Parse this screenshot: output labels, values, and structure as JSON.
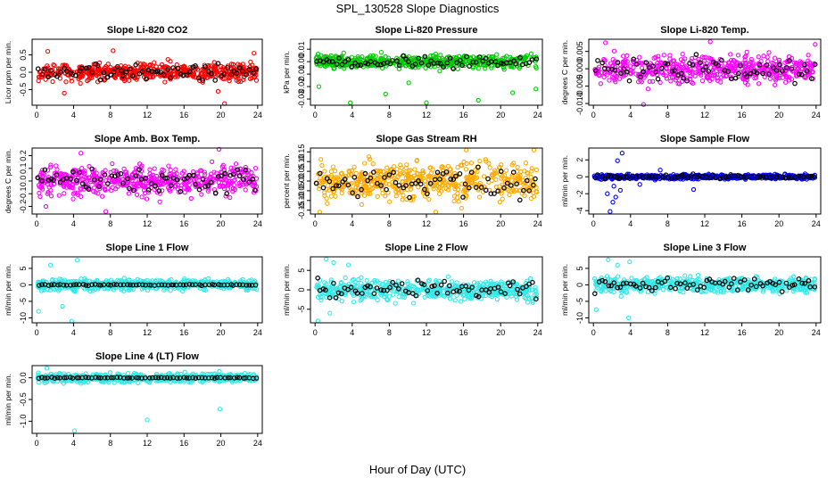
{
  "figure": {
    "title": "SPL_130528  Slope Diagnostics",
    "xlabel": "Hour of Day (UTC)"
  },
  "chart_data": [
    {
      "type": "scatter",
      "title": "Slope Li-820 CO2",
      "ylabel": "Licor ppm per min.",
      "color": "#ff0000",
      "xticks": [
        0,
        4,
        8,
        12,
        16,
        20,
        24
      ],
      "xlim": [
        -0.5,
        24.5
      ],
      "yticks": [
        -0.5,
        0.0,
        0.5
      ],
      "ylim": [
        -0.95,
        0.95
      ],
      "spread": 0.17,
      "noise_seed": 11,
      "outliers": [
        {
          "x": 20.4,
          "y": -0.9
        },
        {
          "x": 3.0,
          "y": -0.6
        },
        {
          "x": 8.3,
          "y": 0.62
        },
        {
          "x": 1.2,
          "y": 0.6
        },
        {
          "x": 19.7,
          "y": -0.55
        },
        {
          "x": 23.6,
          "y": 0.55
        }
      ]
    },
    {
      "type": "scatter",
      "title": "Slope Li-820 Pressure",
      "ylabel": "kPa per min.",
      "color": "#00cc00",
      "xticks": [
        0,
        4,
        8,
        12,
        16,
        20,
        24
      ],
      "xlim": [
        -0.5,
        24.5
      ],
      "yticks": [
        -0.03,
        -0.02,
        -0.01,
        0.0,
        0.01
      ],
      "ylim": [
        -0.035,
        0.018
      ],
      "spread": 0.0035,
      "noise_seed": 23,
      "outliers": [
        {
          "x": 3.8,
          "y": -0.033
        },
        {
          "x": 7.6,
          "y": -0.026
        },
        {
          "x": 12.0,
          "y": -0.033
        },
        {
          "x": 17.6,
          "y": -0.031
        },
        {
          "x": 21.3,
          "y": -0.025
        },
        {
          "x": 23.8,
          "y": -0.022
        },
        {
          "x": 0.4,
          "y": -0.02
        },
        {
          "x": 10.1,
          "y": -0.017
        }
      ]
    },
    {
      "type": "scatter",
      "title": "Slope Li-820 Temp.",
      "ylabel": "degrees C per min.",
      "color": "#ff00ff",
      "xticks": [
        0,
        4,
        8,
        12,
        16,
        20,
        24
      ],
      "xlim": [
        -0.5,
        24.5
      ],
      "yticks": [
        -0.01,
        -0.005,
        0.0,
        0.005
      ],
      "ylim": [
        -0.0105,
        0.0085
      ],
      "spread": 0.0026,
      "noise_seed": 37,
      "outliers": [
        {
          "x": 5.4,
          "y": -0.0103
        },
        {
          "x": 1.3,
          "y": 0.0075
        },
        {
          "x": 12.6,
          "y": 0.0078
        },
        {
          "x": 23.9,
          "y": 0.007
        }
      ]
    },
    {
      "type": "scatter",
      "title": "Slope Amb. Box Temp.",
      "ylabel": "degrees C per min.",
      "color": "#ff00ff",
      "xticks": [
        0,
        4,
        8,
        12,
        16,
        20,
        24
      ],
      "xlim": [
        -0.5,
        24.5
      ],
      "yticks": [
        -0.2,
        -0.1,
        0.0,
        0.1,
        0.2
      ],
      "ylim": [
        -0.26,
        0.26
      ],
      "spread": 0.075,
      "noise_seed": 41,
      "outliers": [
        {
          "x": 19.8,
          "y": 0.25
        },
        {
          "x": 7.5,
          "y": -0.24
        },
        {
          "x": 4.8,
          "y": 0.22
        },
        {
          "x": 1.0,
          "y": -0.2
        }
      ]
    },
    {
      "type": "scatter",
      "title": "Slope Gas Stream RH",
      "ylabel": "percent per min.",
      "color": "#ffaa00",
      "xticks": [
        0,
        4,
        8,
        12,
        16,
        20,
        24
      ],
      "xlim": [
        -0.5,
        24.5
      ],
      "yticks": [
        -0.15,
        -0.1,
        -0.05,
        0.0,
        0.05,
        0.1,
        0.15
      ],
      "ylim": [
        -0.17,
        0.17
      ],
      "spread": 0.065,
      "noise_seed": 53,
      "outliers": [
        {
          "x": 0.5,
          "y": -0.16
        },
        {
          "x": 13.0,
          "y": -0.16
        },
        {
          "x": 16.3,
          "y": 0.16
        },
        {
          "x": 23.6,
          "y": 0.16
        }
      ]
    },
    {
      "type": "scatter",
      "title": "Slope Sample Flow",
      "ylabel": "ml/min per min.",
      "color": "#0000ff",
      "xticks": [
        0,
        4,
        8,
        12,
        16,
        20,
        24
      ],
      "xlim": [
        -0.5,
        24.5
      ],
      "yticks": [
        -4,
        -2,
        0,
        2
      ],
      "ylim": [
        -4.4,
        3.4
      ],
      "spread": 0.18,
      "noise_seed": 67,
      "outliers": [
        {
          "x": 1.8,
          "y": -4.1
        },
        {
          "x": 2.1,
          "y": -3.0
        },
        {
          "x": 2.4,
          "y": -2.4
        },
        {
          "x": 1.5,
          "y": -2.0
        },
        {
          "x": 2.9,
          "y": -1.6
        },
        {
          "x": 3.1,
          "y": 2.8
        },
        {
          "x": 2.6,
          "y": 1.9
        },
        {
          "x": 2.2,
          "y": -1.1
        },
        {
          "x": 7.2,
          "y": 0.8
        },
        {
          "x": 10.8,
          "y": -1.5
        },
        {
          "x": 5.0,
          "y": -0.9
        }
      ]
    },
    {
      "type": "scatter",
      "title": "Slope Line 1 Flow",
      "ylabel": "ml/min per min.",
      "color": "#33e8e8",
      "xticks": [
        0,
        4,
        8,
        12,
        16,
        20,
        24
      ],
      "xlim": [
        -0.5,
        24.5
      ],
      "yticks": [
        -10,
        -5,
        0,
        5
      ],
      "ylim": [
        -11.5,
        8.5
      ],
      "spread": 1.1,
      "noise_seed": 71,
      "black_flat": true,
      "outliers": [
        {
          "x": 3.8,
          "y": -11.0
        },
        {
          "x": 0.2,
          "y": -8.0
        },
        {
          "x": 4.4,
          "y": 7.5
        },
        {
          "x": 1.5,
          "y": 6.0
        },
        {
          "x": 2.8,
          "y": -6.5
        }
      ]
    },
    {
      "type": "scatter",
      "title": "Slope Line 2 Flow",
      "ylabel": "ml/min per min.",
      "color": "#33e8e8",
      "xticks": [
        0,
        4,
        8,
        12,
        16,
        20,
        24
      ],
      "xlim": [
        -0.5,
        24.5
      ],
      "yticks": [
        -5,
        0,
        5
      ],
      "ylim": [
        -8.5,
        8.5
      ],
      "spread": 1.7,
      "noise_seed": 83,
      "outliers": [
        {
          "x": 0.3,
          "y": -8.0
        },
        {
          "x": 1.2,
          "y": 7.9
        },
        {
          "x": 2.0,
          "y": 7.0
        },
        {
          "x": 3.6,
          "y": 6.4
        },
        {
          "x": 1.6,
          "y": -6.0
        }
      ]
    },
    {
      "type": "scatter",
      "title": "Slope Line 3 Flow",
      "ylabel": "ml/min per min.",
      "color": "#33e8e8",
      "xticks": [
        0,
        4,
        8,
        12,
        16,
        20,
        24
      ],
      "xlim": [
        -0.5,
        24.5
      ],
      "yticks": [
        -10,
        -5,
        0,
        5
      ],
      "ylim": [
        -11.5,
        8.5
      ],
      "spread": 1.5,
      "noise_seed": 97,
      "outliers": [
        {
          "x": 3.8,
          "y": -10.0
        },
        {
          "x": 0.3,
          "y": -7.5
        },
        {
          "x": 1.6,
          "y": 7.6
        },
        {
          "x": 2.6,
          "y": 6.0
        },
        {
          "x": 3.9,
          "y": 7.0
        }
      ]
    },
    {
      "type": "scatter",
      "title": "Slope Line 4 (LT) Flow",
      "ylabel": "ml/min per min.",
      "color": "#33e8e8",
      "xticks": [
        0,
        4,
        8,
        12,
        16,
        20,
        24
      ],
      "xlim": [
        -0.5,
        24.5
      ],
      "yticks": [
        -1.0,
        -0.5,
        0.0
      ],
      "ylim": [
        -1.28,
        0.28
      ],
      "spread": 0.07,
      "noise_seed": 101,
      "black_flat": true,
      "outliers": [
        {
          "x": 4.1,
          "y": -1.22
        },
        {
          "x": 12.0,
          "y": -0.97
        },
        {
          "x": 19.9,
          "y": -0.72
        },
        {
          "x": 1.1,
          "y": 0.22
        }
      ]
    }
  ]
}
